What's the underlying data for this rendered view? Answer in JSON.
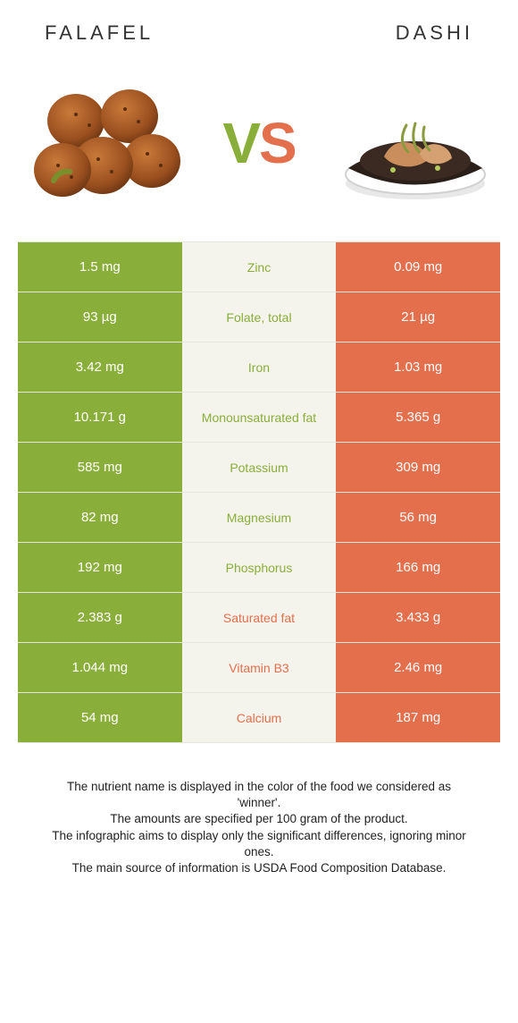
{
  "titles": {
    "left": "Falafel",
    "right": "Dashi"
  },
  "vs": {
    "left_letter": "V",
    "right_letter": "S"
  },
  "colors": {
    "green": "#8aae3a",
    "orange": "#e46f4c",
    "mid_bg": "#f4f4ed",
    "border": "#e5e5e0",
    "text": "#333333"
  },
  "rows": [
    {
      "left": "1.5 mg",
      "name": "Zinc",
      "right": "0.09 mg",
      "winner": "left"
    },
    {
      "left": "93 µg",
      "name": "Folate, total",
      "right": "21 µg",
      "winner": "left"
    },
    {
      "left": "3.42 mg",
      "name": "Iron",
      "right": "1.03 mg",
      "winner": "left"
    },
    {
      "left": "10.171 g",
      "name": "Monounsaturated fat",
      "right": "5.365 g",
      "winner": "left"
    },
    {
      "left": "585 mg",
      "name": "Potassium",
      "right": "309 mg",
      "winner": "left"
    },
    {
      "left": "82 mg",
      "name": "Magnesium",
      "right": "56 mg",
      "winner": "left"
    },
    {
      "left": "192 mg",
      "name": "Phosphorus",
      "right": "166 mg",
      "winner": "left"
    },
    {
      "left": "2.383 g",
      "name": "Saturated fat",
      "right": "3.433 g",
      "winner": "right"
    },
    {
      "left": "1.044 mg",
      "name": "Vitamin B3",
      "right": "2.46 mg",
      "winner": "right"
    },
    {
      "left": "54 mg",
      "name": "Calcium",
      "right": "187 mg",
      "winner": "right"
    }
  ],
  "footnote": [
    "The nutrient name is displayed in the color of the food we considered as 'winner'.",
    "The amounts are specified per 100 gram of the product.",
    "The infographic aims to display only the significant differences, ignoring minor ones.",
    "The main source of information is USDA Food Composition Database."
  ]
}
